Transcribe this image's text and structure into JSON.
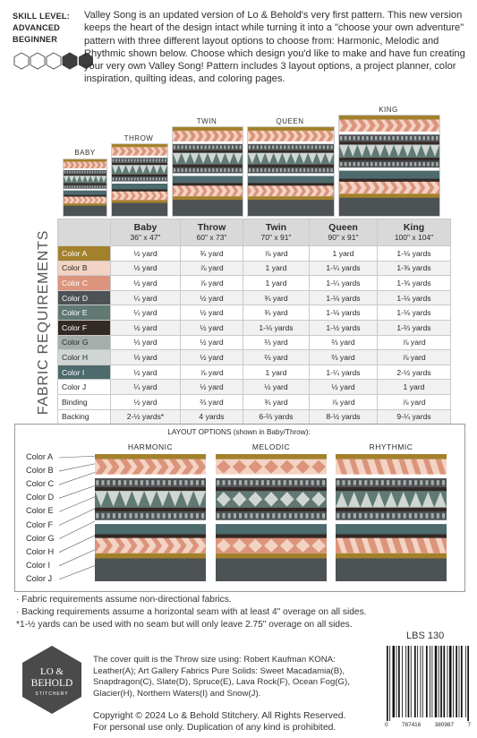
{
  "header": {
    "skill_label": "SKILL LEVEL:",
    "skill_level": "ADVANCED BEGINNER",
    "intro": "Valley Song is an updated version of Lo & Behold's very first pattern. This new version keeps the heart of the design intact while turning it into a \"choose your own adventure\" pattern with three different layout options to choose from: Harmonic, Melodic and Rhythmic shown below. Choose which design you'd like to make and have fun creating your very own Valley Song! Pattern includes 3 layout options, a project planner, color inspiration, quilting ideas, and coloring pages."
  },
  "quilt_sizes": [
    "BABY",
    "THROW",
    "TWIN",
    "QUEEN",
    "KING"
  ],
  "table": {
    "vertical_label": "FABRIC REQUIREMENTS",
    "columns": [
      {
        "size": "Baby",
        "dims": "36\" x 47\""
      },
      {
        "size": "Throw",
        "dims": "60\" x 73\""
      },
      {
        "size": "Twin",
        "dims": "70\" x 91\""
      },
      {
        "size": "Queen",
        "dims": "90\" x 91\""
      },
      {
        "size": "King",
        "dims": "100\" x 104\""
      }
    ],
    "rows": [
      {
        "label": "Color A",
        "swatch": "#a3812c",
        "text": "#ffffff",
        "values": [
          "½ yard",
          "¾ yard",
          "⅞ yard",
          "1 yard",
          "1-⅛ yards"
        ]
      },
      {
        "label": "Color B",
        "swatch": "#f3d3c3",
        "text": "#2a2a2a",
        "values": [
          "½ yard",
          "⅞ yard",
          "1 yard",
          "1-¼ yards",
          "1-⅜ yards"
        ]
      },
      {
        "label": "Color C",
        "swatch": "#dc947c",
        "text": "#ffffff",
        "values": [
          "½ yard",
          "⅞ yard",
          "1 yard",
          "1-¼ yards",
          "1-⅜ yards"
        ]
      },
      {
        "label": "Color D",
        "swatch": "#4d5255",
        "text": "#ffffff",
        "values": [
          "¼ yard",
          "½ yard",
          "¾ yard",
          "1-⅛ yards",
          "1-⅛ yards"
        ]
      },
      {
        "label": "Color E",
        "swatch": "#607973",
        "text": "#ffffff",
        "values": [
          "¼ yard",
          "½ yard",
          "¾ yard",
          "1-⅛ yards",
          "1-⅛ yards"
        ]
      },
      {
        "label": "Color F",
        "swatch": "#332925",
        "text": "#ffffff",
        "values": [
          "½ yard",
          "½ yard",
          "1-⅛ yards",
          "1-½ yards",
          "1-⅔ yards"
        ]
      },
      {
        "label": "Color G",
        "swatch": "#a6aeab",
        "text": "#2a2a2a",
        "values": [
          "⅓ yard",
          "½ yard",
          "⅔ yard",
          "⅔ yard",
          "⅞ yard"
        ]
      },
      {
        "label": "Color H",
        "swatch": "#cfd6d3",
        "text": "#2a2a2a",
        "values": [
          "⅓ yard",
          "½ yard",
          "⅔ yard",
          "⅔ yard",
          "⅞ yard"
        ]
      },
      {
        "label": "Color I",
        "swatch": "#4d6a6d",
        "text": "#ffffff",
        "values": [
          "½ yard",
          "⅞ yard",
          "1 yard",
          "1-¼ yards",
          "2-½ yards"
        ]
      },
      {
        "label": "Color J",
        "swatch": "#ffffff",
        "text": "#2a2a2a",
        "values": [
          "¼ yard",
          "½ yard",
          "½ yard",
          "½ yard",
          "1 yard"
        ]
      },
      {
        "label": "Binding",
        "swatch": "#ffffff",
        "text": "#2a2a2a",
        "values": [
          "½ yard",
          "⅔ yard",
          "¾ yard",
          "⅞ yard",
          "⅞ yard"
        ]
      },
      {
        "label": "Backing",
        "swatch": "#ffffff",
        "text": "#2a2a2a",
        "values": [
          "2-½ yards*",
          "4 yards",
          "6-⅔ yards",
          "8-½ yards",
          "9-¼ yards"
        ]
      }
    ]
  },
  "layout": {
    "title": "LAYOUT OPTIONS (shown in Baby/Throw):",
    "options": [
      "HARMONIC",
      "MELODIC",
      "RHYTHMIC"
    ],
    "color_labels": [
      "Color A",
      "Color B",
      "Color C",
      "Color D",
      "Color E",
      "Color F",
      "Color G",
      "Color H",
      "Color I",
      "Color J"
    ]
  },
  "notes": [
    "· Fabric requirements assume non-directional fabrics.",
    "· Backing requirements assume a horizontal seam with at least 4\" overage on all sides.",
    "*1-½ yards can be used with no seam but will only leave 2.75\" overage on all sides."
  ],
  "footer": {
    "pattern_code": "LBS 130",
    "logo_line1": "LO &",
    "logo_line2": "BEHOLD",
    "logo_line3": "STITCHERY",
    "cover_note": "The cover quilt is the Throw size using: Robert Kaufman KONA: Leather(A); Art Gallery Fabrics Pure Solids: Sweet Macadamia(B), Snapdragon(C), Slate(D), Spruce(E), Lava Rock(F), Ocean Fog(G), Glacier(H), Northern Waters(I) and Snow(J).",
    "copyright_1": "Copyright © 2024 Lo & Behold Stitchery. All Rights Reserved.",
    "copyright_2": "For personal use only. Duplication of any kind is prohibited.",
    "barcode_digits": [
      "0",
      "787416",
      "380987",
      "7"
    ]
  },
  "colors": {
    "A": "#a3812c",
    "B": "#f3d3c3",
    "C": "#dc947c",
    "D": "#4d5255",
    "E": "#607973",
    "F": "#332925",
    "G": "#a6aeab",
    "H": "#cfd6d3",
    "I": "#4d6a6d",
    "J": "#ffffff"
  }
}
